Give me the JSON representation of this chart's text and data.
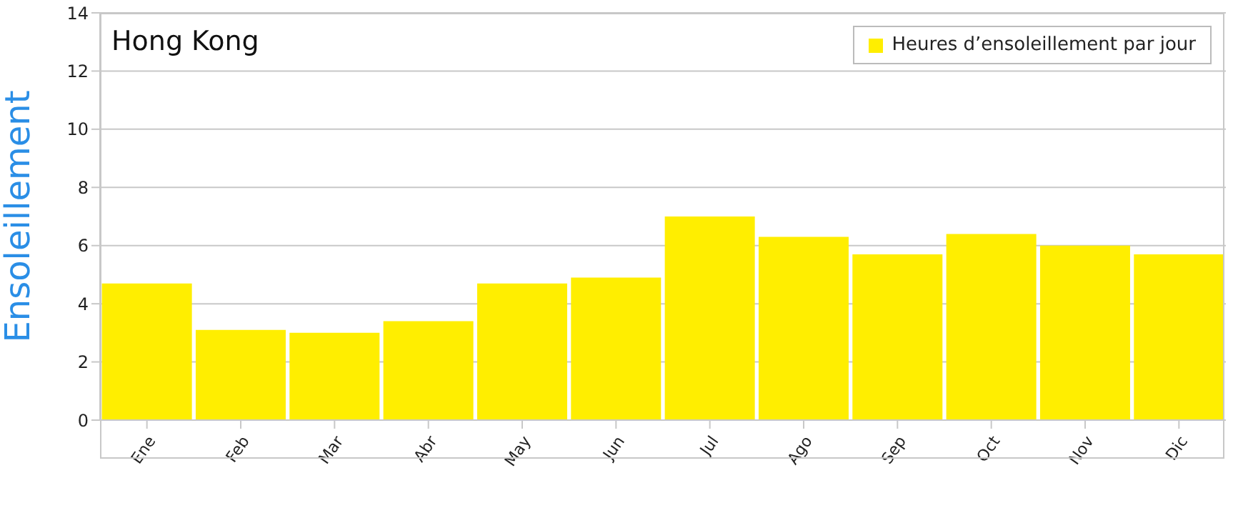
{
  "chart_data": {
    "type": "bar",
    "title": "Hong Kong",
    "ylabel": "Ensoleillement",
    "categories": [
      "Ene",
      "Feb",
      "Mar",
      "Abr",
      "May",
      "Jun",
      "Jul",
      "Ago",
      "Sep",
      "Oct",
      "Nov",
      "Dic"
    ],
    "series": [
      {
        "name": "Heures d’ensoleillement par jour",
        "color": "#ffee00",
        "values": [
          4.7,
          3.1,
          3.0,
          3.4,
          4.7,
          4.9,
          7.0,
          6.3,
          5.7,
          6.4,
          6.0,
          5.7
        ]
      }
    ],
    "ylim": [
      0,
      14
    ],
    "yticks": [
      0,
      2,
      4,
      6,
      8,
      10,
      12,
      14
    ],
    "grid": "y",
    "legend": "top right"
  }
}
